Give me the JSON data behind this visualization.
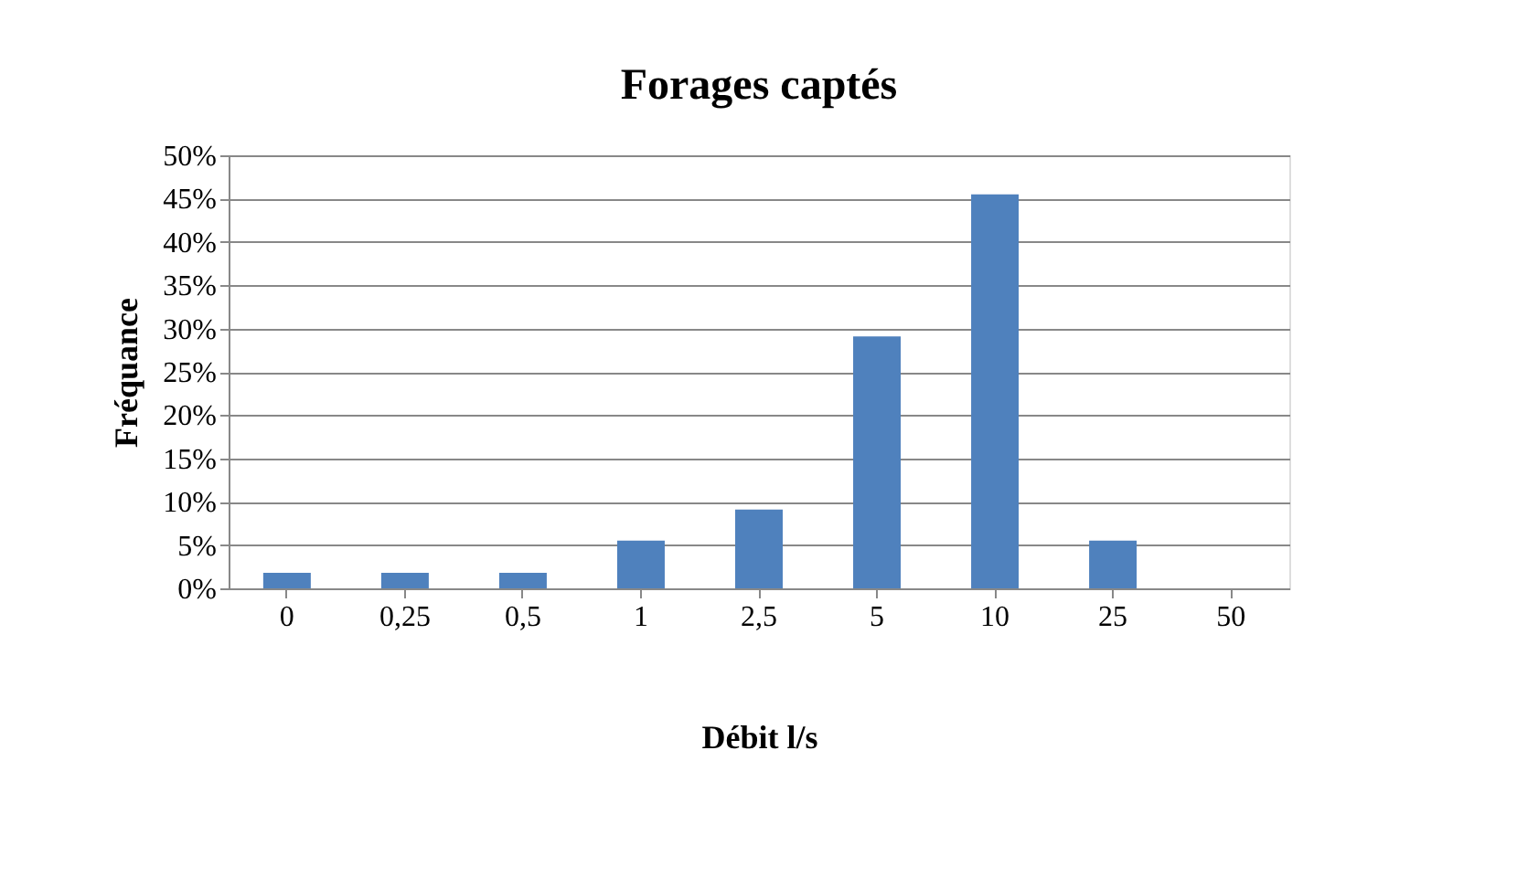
{
  "chart_data": {
    "type": "bar",
    "title": "Forages captés",
    "xlabel": "Débit l/s",
    "ylabel": "Fréquance",
    "categories": [
      "0",
      "0,25",
      "0,5",
      "1",
      "2,5",
      "5",
      "10",
      "25",
      "50"
    ],
    "values": [
      1.8,
      1.8,
      1.8,
      5.5,
      9.1,
      29.1,
      45.5,
      5.5,
      0
    ],
    "color": "#4f81bd",
    "ylim": [
      0,
      50
    ],
    "yticks": [
      {
        "value": 0,
        "label": "0%"
      },
      {
        "value": 5,
        "label": "5%"
      },
      {
        "value": 10,
        "label": "10%"
      },
      {
        "value": 15,
        "label": "15%"
      },
      {
        "value": 20,
        "label": "20%"
      },
      {
        "value": 25,
        "label": "25%"
      },
      {
        "value": 30,
        "label": "30%"
      },
      {
        "value": 35,
        "label": "35%"
      },
      {
        "value": 40,
        "label": "40%"
      },
      {
        "value": 45,
        "label": "45%"
      },
      {
        "value": 50,
        "label": "50%"
      }
    ],
    "grid": "y"
  }
}
